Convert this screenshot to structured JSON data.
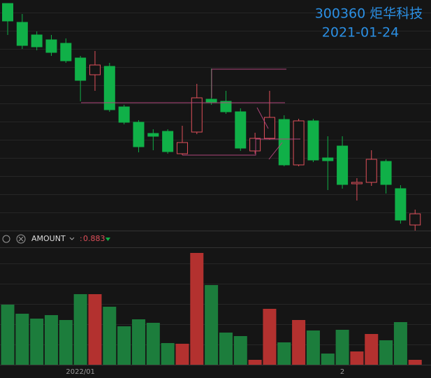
{
  "chart_data": [
    {
      "type": "candlestick",
      "title": "300360 炬华科技",
      "subtitle": "2021-01-24",
      "categories": [
        null,
        null,
        null,
        null,
        null,
        "2022/01",
        null,
        null,
        null,
        null,
        null,
        null,
        null,
        null,
        null,
        null,
        null,
        null,
        null,
        null,
        null,
        null,
        null,
        "2",
        null,
        null,
        null,
        null,
        null
      ],
      "open": [
        325,
        298,
        280,
        273,
        268,
        247,
        223,
        235,
        177,
        155,
        139,
        142,
        110,
        141,
        188,
        185,
        170,
        114,
        132,
        159,
        94,
        157,
        104,
        121,
        67,
        69,
        99,
        60,
        8
      ],
      "close": [
        300,
        265,
        263,
        255,
        243,
        215,
        237,
        173,
        155,
        120,
        135,
        113,
        126,
        190,
        183,
        170,
        118,
        132,
        162,
        94,
        157,
        101,
        100,
        66,
        69,
        102,
        66,
        15,
        24
      ],
      "high": [
        325,
        310,
        285,
        280,
        275,
        250,
        257,
        240,
        180,
        158,
        145,
        145,
        150,
        210,
        232,
        200,
        175,
        140,
        200,
        165,
        160,
        160,
        135,
        135,
        75,
        115,
        102,
        65,
        30
      ],
      "low": [
        280,
        260,
        258,
        250,
        240,
        185,
        200,
        170,
        152,
        112,
        115,
        110,
        108,
        138,
        180,
        167,
        114,
        110,
        130,
        92,
        92,
        98,
        58,
        60,
        43,
        64,
        53,
        10,
        0
      ],
      "ylim": [
        0,
        330
      ],
      "up_color": "#e0505a",
      "down_color": "#10b048"
    },
    {
      "type": "bar",
      "title": "AMOUNT",
      "value_prefix": ":",
      "value": 0.883,
      "values": [
        86,
        73,
        66,
        71,
        64,
        101,
        101,
        83,
        55,
        65,
        60,
        31,
        30,
        160,
        114,
        46,
        41,
        7,
        80,
        32,
        64,
        49,
        16,
        50,
        19,
        44,
        35,
        61,
        7
      ],
      "ylim": [
        0,
        167
      ],
      "up_color": "#b3312f",
      "down_color": "#1c7d3c"
    }
  ]
}
